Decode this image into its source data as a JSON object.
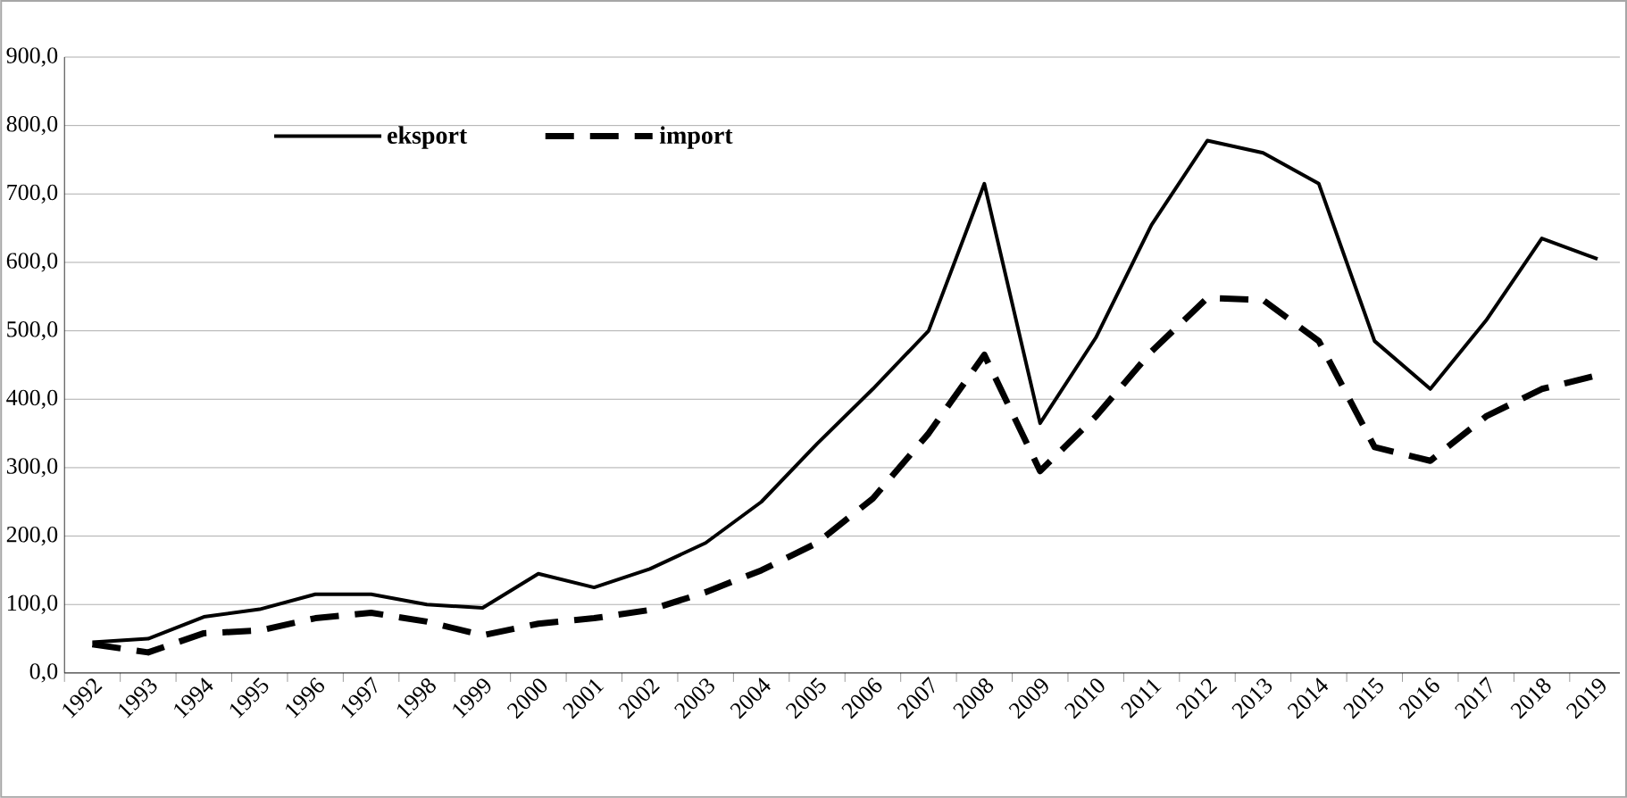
{
  "chart_data": {
    "type": "line",
    "categories": [
      "1992",
      "1993",
      "1994",
      "1995",
      "1996",
      "1997",
      "1998",
      "1999",
      "2000",
      "2001",
      "2002",
      "2003",
      "2004",
      "2005",
      "2006",
      "2007",
      "2008",
      "2009",
      "2010",
      "2011",
      "2012",
      "2013",
      "2014",
      "2015",
      "2016",
      "2017",
      "2018",
      "2019"
    ],
    "series": [
      {
        "name": "eksport",
        "color": "#000000",
        "line_style": "solid",
        "values": [
          45,
          50,
          82,
          93,
          115,
          115,
          100,
          95,
          145,
          125,
          152,
          190,
          250,
          335,
          415,
          500,
          715,
          365,
          490,
          655,
          778,
          760,
          715,
          485,
          415,
          515,
          635,
          605
        ]
      },
      {
        "name": "import",
        "color": "#000000",
        "line_style": "dashed",
        "values": [
          42,
          30,
          58,
          62,
          80,
          88,
          75,
          55,
          72,
          80,
          92,
          118,
          150,
          190,
          255,
          350,
          465,
          295,
          375,
          470,
          548,
          545,
          485,
          330,
          310,
          375,
          415,
          435
        ]
      }
    ],
    "ylim": [
      0,
      900
    ],
    "yticks": [
      {
        "value": 0,
        "label": "0,0"
      },
      {
        "value": 100,
        "label": "100,0"
      },
      {
        "value": 200,
        "label": "200,0"
      },
      {
        "value": 300,
        "label": "300,0"
      },
      {
        "value": 400,
        "label": "400,0"
      },
      {
        "value": 500,
        "label": "500,0"
      },
      {
        "value": 600,
        "label": "600,0"
      },
      {
        "value": 700,
        "label": "700,0"
      },
      {
        "value": 800,
        "label": "800,0"
      },
      {
        "value": 900,
        "label": "900,0"
      }
    ],
    "grid": "y",
    "legend": "top left",
    "marker": "none"
  }
}
